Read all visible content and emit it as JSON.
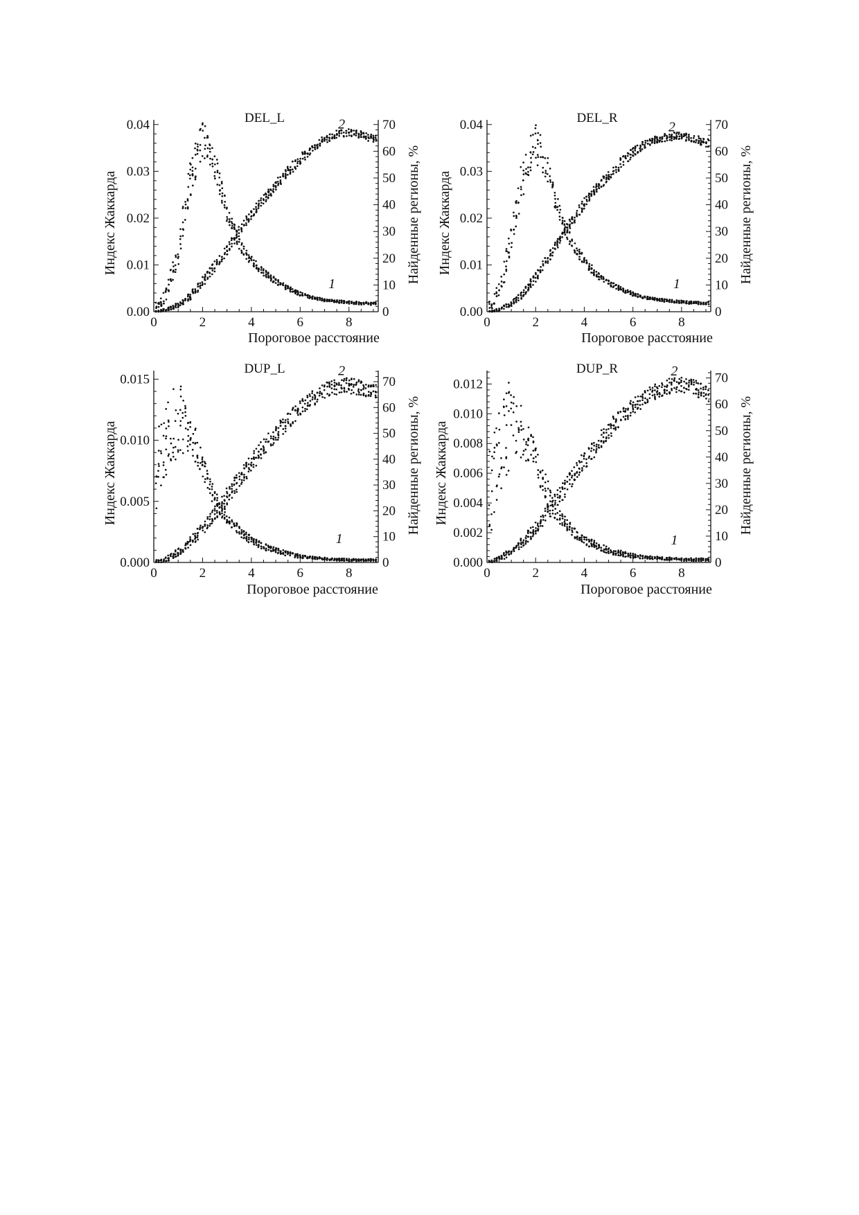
{
  "figure": {
    "background": "#ffffff",
    "ink": "#111111"
  },
  "chart_data": [
    {
      "type": "scatter",
      "title": "DEL_L",
      "xlabel": "Пороговое расстояние",
      "ylabel": "Индекс Жаккарда",
      "y2label": "Найденные регионы, %",
      "xlim": [
        0,
        9.2
      ],
      "ylim": [
        0,
        0.041
      ],
      "y2lim": [
        0,
        71.75
      ],
      "xticks": [
        0,
        2,
        4,
        6,
        8
      ],
      "xtick_labels": [
        "0",
        "2",
        "4",
        "6",
        "8"
      ],
      "yticks": [
        0,
        0.01,
        0.02,
        0.03,
        0.04
      ],
      "ytick_labels": [
        "0.00",
        "0.01",
        "0.02",
        "0.03",
        "0.04"
      ],
      "y2ticks": [
        0,
        10,
        20,
        30,
        40,
        50,
        60,
        70
      ],
      "y2tick_labels": [
        "0",
        "10",
        "20",
        "30",
        "40",
        "50",
        "60",
        "70"
      ],
      "grid": false,
      "series": [
        {
          "label": "1",
          "axis": "left",
          "label_at": [
            7.3,
            0.005
          ],
          "x": [
            0.2,
            0.6,
            1.0,
            1.4,
            1.8,
            2.0,
            2.2,
            2.6,
            3.0,
            3.5,
            4.0,
            4.5,
            5.0,
            5.5,
            6.0,
            6.5,
            7.0,
            7.5,
            8.0,
            8.5,
            9.0
          ],
          "y": [
            0.0015,
            0.005,
            0.013,
            0.026,
            0.034,
            0.037,
            0.036,
            0.03,
            0.021,
            0.0145,
            0.011,
            0.0085,
            0.0065,
            0.005,
            0.0038,
            0.003,
            0.0025,
            0.0022,
            0.002,
            0.0018,
            0.0017
          ],
          "spread": [
            0.001,
            0.002,
            0.003,
            0.004,
            0.004,
            0.004,
            0.004,
            0.003,
            0.002,
            0.0015,
            0.001,
            0.0008,
            0.0006,
            0.0005,
            0.0004,
            0.0003,
            0.0003,
            0.0003,
            0.0003,
            0.0003,
            0.0003
          ]
        },
        {
          "label": "2",
          "axis": "right",
          "label_at": [
            7.7,
            68.5
          ],
          "x": [
            0.2,
            0.5,
            1.0,
            1.5,
            2.0,
            2.5,
            3.0,
            3.5,
            4.0,
            4.5,
            5.0,
            5.5,
            6.0,
            6.5,
            7.0,
            7.5,
            8.0,
            8.5,
            9.0
          ],
          "y": [
            0.2,
            0.8,
            2.5,
            6,
            11,
            17,
            23,
            30,
            36.5,
            42,
            47.5,
            52.5,
            57,
            61,
            64.5,
            66.5,
            67,
            66.3,
            64.5
          ],
          "spread": [
            0.3,
            0.5,
            1,
            1.5,
            2,
            2,
            2,
            2,
            2,
            2,
            2,
            2,
            2,
            1.5,
            1.5,
            1.5,
            1.5,
            1.5,
            1.5
          ]
        }
      ]
    },
    {
      "type": "scatter",
      "title": "DEL_R",
      "xlabel": "Пороговое расстояние",
      "ylabel": "Индекс Жаккарда",
      "y2label": "Найденные регионы, %",
      "xlim": [
        0,
        9.2
      ],
      "ylim": [
        0,
        0.041
      ],
      "y2lim": [
        0,
        71.75
      ],
      "xticks": [
        0,
        2,
        4,
        6,
        8
      ],
      "xtick_labels": [
        "0",
        "2",
        "4",
        "6",
        "8"
      ],
      "yticks": [
        0,
        0.01,
        0.02,
        0.03,
        0.04
      ],
      "ytick_labels": [
        "0.00",
        "0.01",
        "0.02",
        "0.03",
        "0.04"
      ],
      "y2ticks": [
        0,
        10,
        20,
        30,
        40,
        50,
        60,
        70
      ],
      "y2tick_labels": [
        "0",
        "10",
        "20",
        "30",
        "40",
        "50",
        "60",
        "70"
      ],
      "grid": false,
      "series": [
        {
          "label": "1",
          "axis": "left",
          "label_at": [
            7.8,
            0.005
          ],
          "x": [
            0.2,
            0.6,
            1.0,
            1.4,
            1.8,
            2.0,
            2.2,
            2.5,
            2.8,
            3.2,
            3.6,
            4.0,
            4.5,
            5.0,
            5.5,
            6.0,
            6.5,
            7.0,
            7.5,
            8.0,
            8.5,
            9.0
          ],
          "y": [
            0.0015,
            0.006,
            0.016,
            0.027,
            0.034,
            0.036,
            0.034,
            0.03,
            0.024,
            0.018,
            0.0135,
            0.011,
            0.008,
            0.0062,
            0.0048,
            0.0038,
            0.003,
            0.0026,
            0.0023,
            0.0021,
            0.0019,
            0.0018
          ],
          "spread": [
            0.001,
            0.002,
            0.003,
            0.004,
            0.004,
            0.004,
            0.004,
            0.003,
            0.002,
            0.0015,
            0.0012,
            0.001,
            0.0008,
            0.0006,
            0.0005,
            0.0004,
            0.0003,
            0.0003,
            0.0003,
            0.0003,
            0.0003,
            0.0003
          ]
        },
        {
          "label": "2",
          "axis": "right",
          "label_at": [
            7.6,
            67.5
          ],
          "x": [
            0.2,
            0.5,
            1.0,
            1.5,
            2.0,
            2.5,
            3.0,
            3.5,
            4.0,
            4.5,
            5.0,
            5.5,
            6.0,
            6.5,
            7.0,
            7.5,
            8.0,
            8.5,
            9.0
          ],
          "y": [
            0.2,
            0.8,
            3,
            7,
            13,
            20,
            27,
            34,
            40.5,
            46,
            51,
            55.5,
            59.5,
            62.5,
            64.5,
            65.5,
            65.7,
            64.8,
            63.2
          ],
          "spread": [
            0.3,
            0.5,
            1,
            1.5,
            2,
            2,
            2,
            2,
            2,
            2,
            2,
            2,
            2,
            1.5,
            1.5,
            1.5,
            1.5,
            1.5,
            1.5
          ]
        }
      ]
    },
    {
      "type": "scatter",
      "title": "DUP_L",
      "xlabel": "Пороговое расстояние",
      "ylabel": "Индекс Жаккарда",
      "y2label": "Найденные регионы, %",
      "xlim": [
        0,
        9.2
      ],
      "ylim": [
        0,
        0.0157
      ],
      "y2lim": [
        0,
        74.3
      ],
      "xticks": [
        0,
        2,
        4,
        6,
        8
      ],
      "xtick_labels": [
        "0",
        "2",
        "4",
        "6",
        "8"
      ],
      "yticks": [
        0,
        0.005,
        0.01,
        0.015
      ],
      "ytick_labels": [
        "0.000",
        "0.005",
        "0.010",
        "0.015"
      ],
      "y2ticks": [
        0,
        10,
        20,
        30,
        40,
        50,
        60,
        70
      ],
      "y2tick_labels": [
        "0",
        "10",
        "20",
        "30",
        "40",
        "50",
        "60",
        "70"
      ],
      "grid": false,
      "series": [
        {
          "label": "1",
          "axis": "left",
          "label_at": [
            7.6,
            0.0016
          ],
          "x": [
            0.2,
            0.4,
            0.7,
            1.0,
            1.3,
            1.7,
            2.0,
            2.3,
            2.6,
            3.0,
            3.5,
            4.0,
            4.5,
            5.0,
            5.5,
            6.0,
            6.5,
            7.0,
            7.5,
            8.0,
            8.5,
            9.0
          ],
          "y": [
            0.0075,
            0.0095,
            0.0108,
            0.0122,
            0.011,
            0.0095,
            0.008,
            0.0063,
            0.0048,
            0.0036,
            0.0026,
            0.0018,
            0.0013,
            0.001,
            0.0007,
            0.0005,
            0.0004,
            0.0003,
            0.00025,
            0.0002,
            0.0002,
            0.0002
          ],
          "spread": [
            0.004,
            0.003,
            0.003,
            0.0035,
            0.002,
            0.0015,
            0.001,
            0.001,
            0.0008,
            0.0005,
            0.0004,
            0.0003,
            0.0003,
            0.0002,
            0.0002,
            0.00015,
            0.0001,
            0.0001,
            0.0001,
            0.0001,
            0.0001,
            0.0001
          ]
        },
        {
          "label": "2",
          "axis": "right",
          "label_at": [
            7.7,
            72.5
          ],
          "x": [
            0.2,
            0.5,
            1.0,
            1.5,
            2.0,
            2.5,
            3.0,
            3.5,
            4.0,
            4.5,
            5.0,
            5.5,
            6.0,
            6.5,
            7.0,
            7.5,
            8.0,
            8.5,
            9.0
          ],
          "y": [
            0.5,
            1.2,
            4,
            8,
            13,
            19,
            25.5,
            32,
            38.5,
            44.5,
            50,
            55,
            59.5,
            63.5,
            66.5,
            68,
            68.5,
            67.5,
            66
          ],
          "spread": [
            0.5,
            1,
            1.5,
            2,
            2.5,
            3,
            3.5,
            3.5,
            3.5,
            3.5,
            3.5,
            3.5,
            3,
            3,
            3,
            3,
            3,
            3,
            3
          ]
        }
      ]
    },
    {
      "type": "scatter",
      "title": "DUP_R",
      "xlabel": "Пороговое расстояние",
      "ylabel": "Индекс Жаккарда",
      "y2label": "Найденные регионы, %",
      "xlim": [
        0,
        9.2
      ],
      "ylim": [
        0,
        0.0129
      ],
      "y2lim": [
        0,
        72.8
      ],
      "xticks": [
        0,
        2,
        4,
        6,
        8
      ],
      "xtick_labels": [
        "0",
        "2",
        "4",
        "6",
        "8"
      ],
      "yticks": [
        0,
        0.002,
        0.004,
        0.006,
        0.008,
        0.01,
        0.012
      ],
      "ytick_labels": [
        "0.000",
        "0.002",
        "0.004",
        "0.006",
        "0.008",
        "0.010",
        "0.012"
      ],
      "y2ticks": [
        0,
        10,
        20,
        30,
        40,
        50,
        60,
        70
      ],
      "y2tick_labels": [
        "0",
        "10",
        "20",
        "30",
        "40",
        "50",
        "60",
        "70"
      ],
      "grid": false,
      "series": [
        {
          "label": "1",
          "axis": "left",
          "label_at": [
            7.7,
            0.0012
          ],
          "x": [
            0.2,
            0.4,
            0.7,
            1.0,
            1.3,
            1.7,
            2.0,
            2.3,
            2.6,
            3.0,
            3.5,
            4.0,
            4.5,
            5.0,
            5.5,
            6.0,
            6.5,
            7.0,
            7.5,
            8.0,
            8.5,
            9.0
          ],
          "y": [
            0.005,
            0.0065,
            0.0085,
            0.0095,
            0.009,
            0.0082,
            0.007,
            0.0055,
            0.0042,
            0.003,
            0.0021,
            0.0015,
            0.0011,
            0.0008,
            0.0006,
            0.00045,
            0.00035,
            0.0003,
            0.00025,
            0.0002,
            0.0002,
            0.0002
          ],
          "spread": [
            0.003,
            0.003,
            0.003,
            0.003,
            0.002,
            0.0015,
            0.001,
            0.001,
            0.0008,
            0.0005,
            0.0004,
            0.0003,
            0.0003,
            0.0002,
            0.0002,
            0.00015,
            0.0001,
            0.0001,
            0.0001,
            0.0001,
            0.0001,
            0.0001
          ]
        },
        {
          "label": "2",
          "axis": "right",
          "label_at": [
            7.7,
            71.0
          ],
          "x": [
            0.2,
            0.5,
            1.0,
            1.5,
            2.0,
            2.5,
            3.0,
            3.5,
            4.0,
            4.5,
            5.0,
            5.5,
            6.0,
            6.5,
            7.0,
            7.5,
            8.0,
            8.5,
            9.0
          ],
          "y": [
            0.5,
            1.5,
            4,
            8,
            13,
            19,
            25.5,
            32,
            38.5,
            44.5,
            50,
            55,
            59,
            62.5,
            65.5,
            67,
            67.5,
            66.5,
            64
          ],
          "spread": [
            0.5,
            1,
            1.5,
            2,
            2.5,
            3,
            3.5,
            3.5,
            3.5,
            3.5,
            3.5,
            3.5,
            3,
            3,
            3,
            3,
            3,
            3,
            3
          ]
        }
      ]
    }
  ]
}
